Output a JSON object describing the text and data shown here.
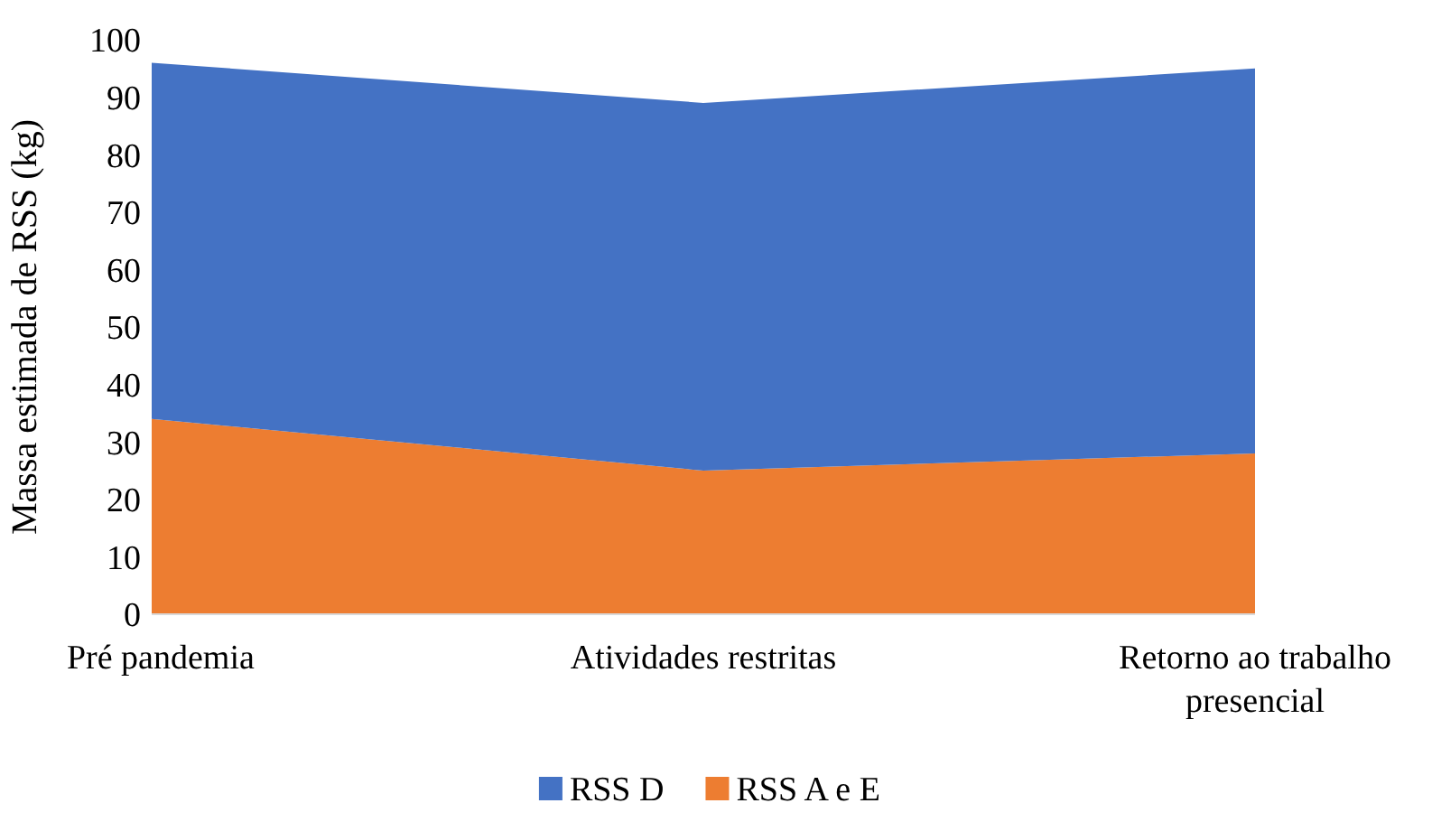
{
  "chart_data": {
    "type": "area",
    "stacked": true,
    "ylabel": "Massa estimada de RSS (kg)",
    "categories": [
      "Pré pandemia",
      "Atividades restritas",
      "Retorno ao trabalho presencial"
    ],
    "series": [
      {
        "name": "RSS A e E",
        "color": "#ed7d31",
        "values": [
          34,
          25,
          28
        ]
      },
      {
        "name": "RSS D",
        "color": "#4472c4",
        "values": [
          62,
          64,
          67
        ]
      }
    ],
    "ylim": [
      0,
      100
    ],
    "yticks": [
      0,
      10,
      20,
      30,
      40,
      50,
      60,
      70,
      80,
      90,
      100
    ],
    "grid": false,
    "legend": "bottom"
  }
}
